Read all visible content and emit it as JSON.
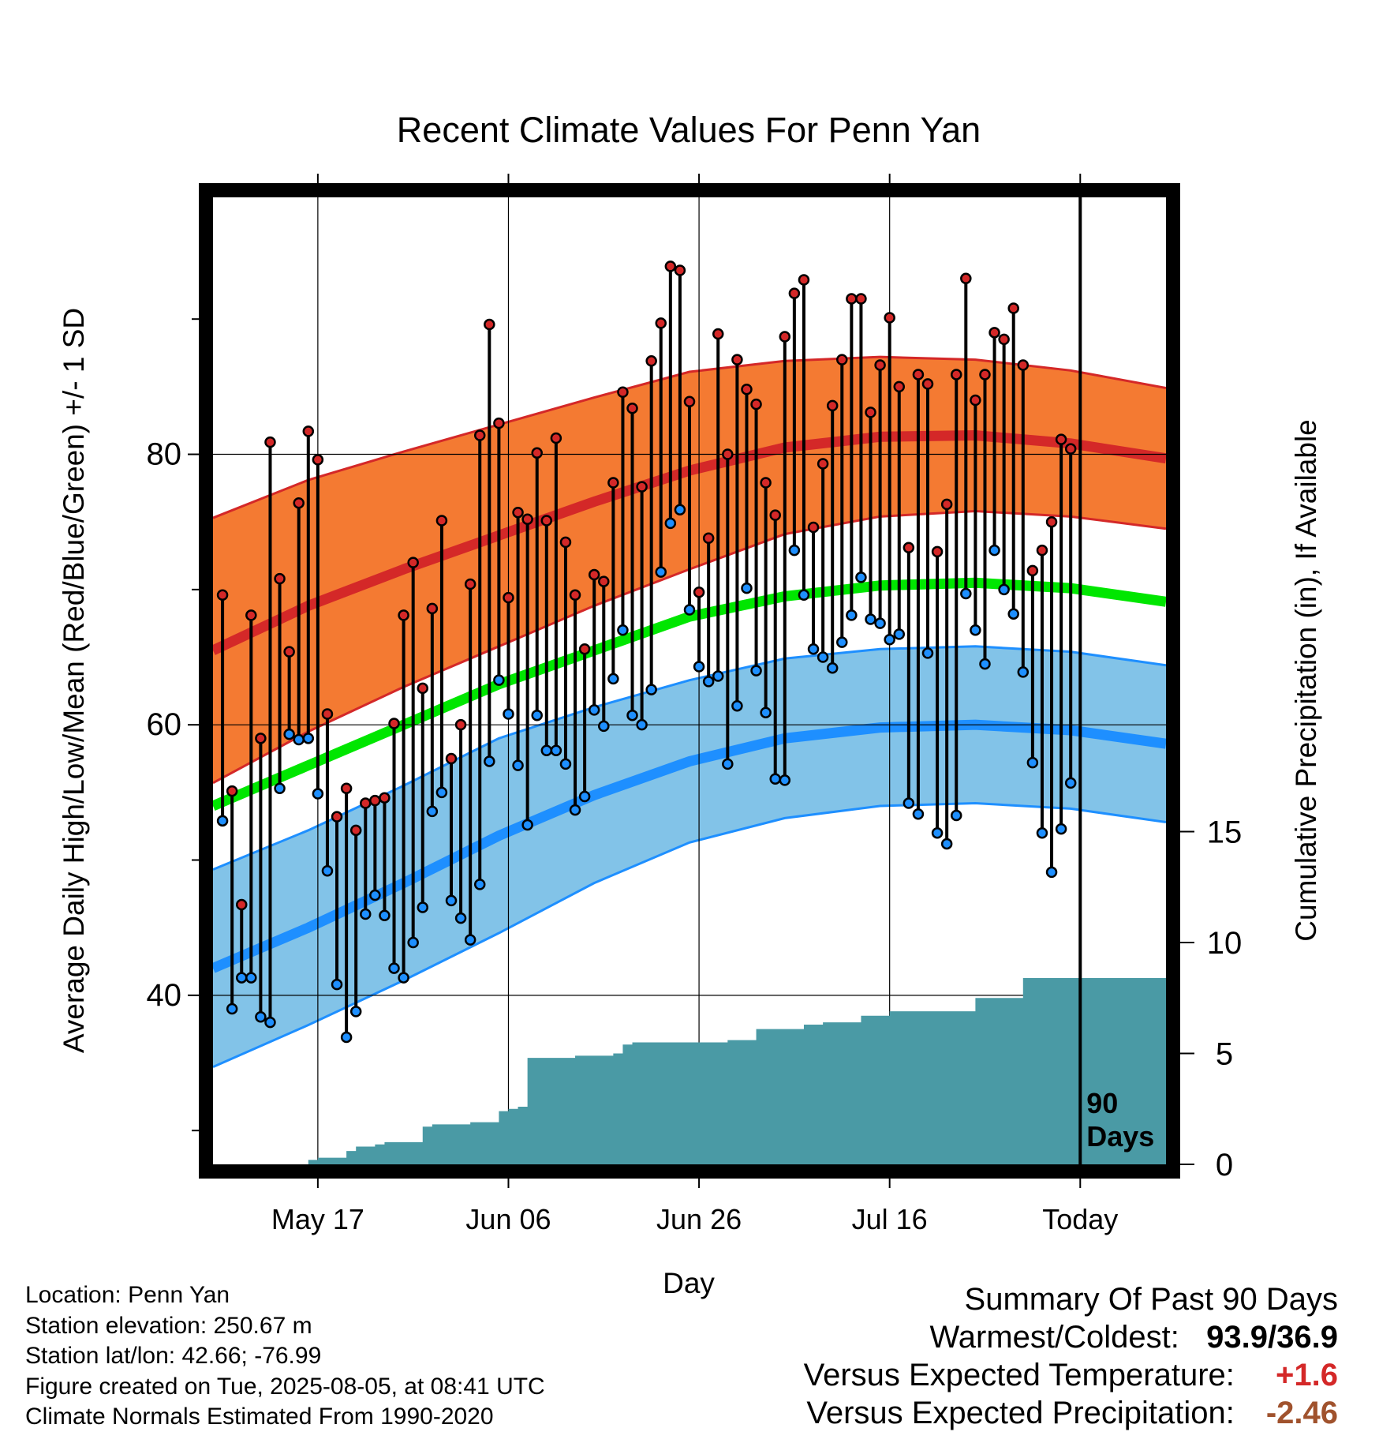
{
  "chart_data": {
    "type": "line",
    "title": "Recent Climate Values For Penn Yan",
    "xlabel": "Day",
    "ylabel_left": "Average Daily High/Low/Mean (Red/Blue/Green) +/- 1 SD",
    "ylabel_right": "Cumulative Precipitation (in), If Available",
    "x_ticks": [
      "May 17",
      "Jun 06",
      "Jun 26",
      "Jul 16",
      "Today"
    ],
    "x_tick_days": [
      10,
      30,
      50,
      70,
      90
    ],
    "xlim": [
      -1,
      99
    ],
    "ylim_left": [
      27.5,
      99
    ],
    "left_ticks": [
      40,
      60,
      80
    ],
    "ylim_right": [
      0,
      43.6
    ],
    "right_ticks": [
      0,
      5,
      10,
      15
    ],
    "today_marker": "90\nDays",
    "colors": {
      "high": "#d42828",
      "high_band": "#f47a32",
      "low": "#1e8fff",
      "low_band": "#82c3e8",
      "mean": "#00e600",
      "precip": "#4a9aa5"
    },
    "normals": {
      "days": [
        -1,
        9,
        19,
        29,
        39,
        49,
        59,
        69,
        79,
        89,
        99
      ],
      "high": [
        65.5,
        68.8,
        71.5,
        74.0,
        76.5,
        78.8,
        80.5,
        81.3,
        81.4,
        80.8,
        79.7
      ],
      "high_sd": [
        9.8,
        9.3,
        8.7,
        8.2,
        7.7,
        7.3,
        6.4,
        5.9,
        5.6,
        5.4,
        5.2
      ],
      "low": [
        42.0,
        45.0,
        48.3,
        51.8,
        54.8,
        57.3,
        59.0,
        59.8,
        60.0,
        59.6,
        58.6
      ],
      "low_sd": [
        7.3,
        7.2,
        7.2,
        7.2,
        6.5,
        6.0,
        5.9,
        5.8,
        5.8,
        5.8,
        5.8
      ],
      "mean": [
        54.0,
        57.0,
        60.0,
        63.0,
        65.5,
        68.0,
        69.5,
        70.3,
        70.5,
        70.1,
        69.1
      ]
    },
    "series": [
      {
        "name": "High",
        "values": [
          69.6,
          55.1,
          46.7,
          68.1,
          59.0,
          80.9,
          70.8,
          65.4,
          76.4,
          81.7,
          79.6,
          60.8,
          53.2,
          55.3,
          52.2,
          54.2,
          54.4,
          54.6,
          60.1,
          68.1,
          72.0,
          62.7,
          68.6,
          75.1,
          57.5,
          60.0,
          70.4,
          81.4,
          89.6,
          82.3,
          69.4,
          75.7,
          75.2,
          80.1,
          75.1,
          81.2,
          73.5,
          69.6,
          65.6,
          71.1,
          70.6,
          77.9,
          84.6,
          83.4,
          77.6,
          86.9,
          89.7,
          93.9,
          93.6,
          83.9,
          69.8,
          73.8,
          88.9,
          80.0,
          87.0,
          84.8,
          83.7,
          77.9,
          75.5,
          88.7,
          91.9,
          92.9,
          74.6,
          79.3,
          83.6,
          87.0,
          91.5,
          91.5,
          83.1,
          86.6,
          90.1,
          85.0,
          73.1,
          85.9,
          85.2,
          72.8,
          76.3,
          85.9,
          93.0,
          84.0,
          85.9,
          89.0,
          88.5,
          90.8,
          86.6,
          71.4,
          72.9,
          75.0,
          81.1,
          80.4
        ],
        "color": "#d42828"
      },
      {
        "name": "Low",
        "values": [
          52.9,
          39.0,
          41.3,
          41.3,
          38.4,
          38.0,
          55.3,
          59.3,
          58.9,
          59.0,
          54.9,
          49.2,
          40.8,
          36.9,
          38.8,
          46.0,
          47.4,
          45.9,
          42.0,
          41.3,
          43.9,
          46.5,
          53.6,
          55.0,
          47.0,
          45.7,
          44.1,
          48.2,
          57.3,
          63.3,
          60.8,
          57.0,
          52.6,
          60.7,
          58.1,
          58.1,
          57.1,
          53.7,
          54.7,
          61.1,
          59.9,
          63.4,
          67.0,
          60.7,
          60.0,
          62.6,
          71.3,
          74.9,
          75.9,
          68.5,
          64.3,
          63.2,
          63.6,
          57.1,
          61.4,
          70.1,
          64.0,
          60.9,
          56.0,
          55.9,
          72.9,
          69.6,
          65.6,
          65.0,
          64.2,
          66.1,
          68.1,
          70.9,
          67.8,
          67.5,
          66.3,
          66.7,
          54.2,
          53.4,
          65.3,
          52.0,
          51.2,
          53.3,
          69.7,
          67.0,
          64.5,
          72.9,
          70.0,
          68.2,
          63.9,
          57.2,
          52.0,
          49.1,
          52.3,
          55.7
        ],
        "color": "#1e8fff"
      },
      {
        "name": "Cumulative Precipitation",
        "values": [
          0,
          0,
          0,
          0,
          0,
          0,
          0,
          0,
          0,
          0,
          0.2,
          0.3,
          0.3,
          0.3,
          0.6,
          0.8,
          0.8,
          0.9,
          1.0,
          1.0,
          1.0,
          1.0,
          1.7,
          1.8,
          1.8,
          1.8,
          1.8,
          1.9,
          1.9,
          1.9,
          2.4,
          2.5,
          2.6,
          4.8,
          4.8,
          4.8,
          4.8,
          4.8,
          4.9,
          4.9,
          4.9,
          4.9,
          5.0,
          5.4,
          5.5,
          5.5,
          5.5,
          5.5,
          5.5,
          5.5,
          5.5,
          5.5,
          5.5,
          5.5,
          5.6,
          5.6,
          5.6,
          6.1,
          6.1,
          6.1,
          6.1,
          6.1,
          6.3,
          6.3,
          6.4,
          6.4,
          6.4,
          6.4,
          6.7,
          6.7,
          6.7,
          6.9,
          6.9,
          6.9,
          6.9,
          6.9,
          6.9,
          6.9,
          6.9,
          6.9,
          7.5,
          7.5,
          7.5,
          7.5,
          7.5,
          8.4,
          8.4,
          8.4,
          8.4,
          8.4,
          8.4,
          8.4,
          8.4,
          8.4,
          8.4,
          8.4,
          8.4,
          8.4,
          8.4,
          8.4
        ],
        "color": "#4a9aa5"
      }
    ]
  },
  "station_info": [
    "Location: Penn Yan",
    "Station elevation: 250.67 m",
    "Station lat/lon: 42.66; -76.99",
    "Figure created on Tue, 2025-08-05, at 08:41 UTC",
    "Climate Normals Estimated From 1990-2020"
  ],
  "summary": {
    "heading": "Summary Of Past 90 Days",
    "warm_cold_label": "Warmest/Coldest:",
    "warm_cold_value": "93.9/36.9",
    "temp_label": "Versus Expected Temperature:",
    "temp_value": "+1.6",
    "temp_color": "#d42828",
    "precip_label": "Versus Expected Precipitation:",
    "precip_value": "-2.46",
    "precip_color": "#a0522d"
  }
}
